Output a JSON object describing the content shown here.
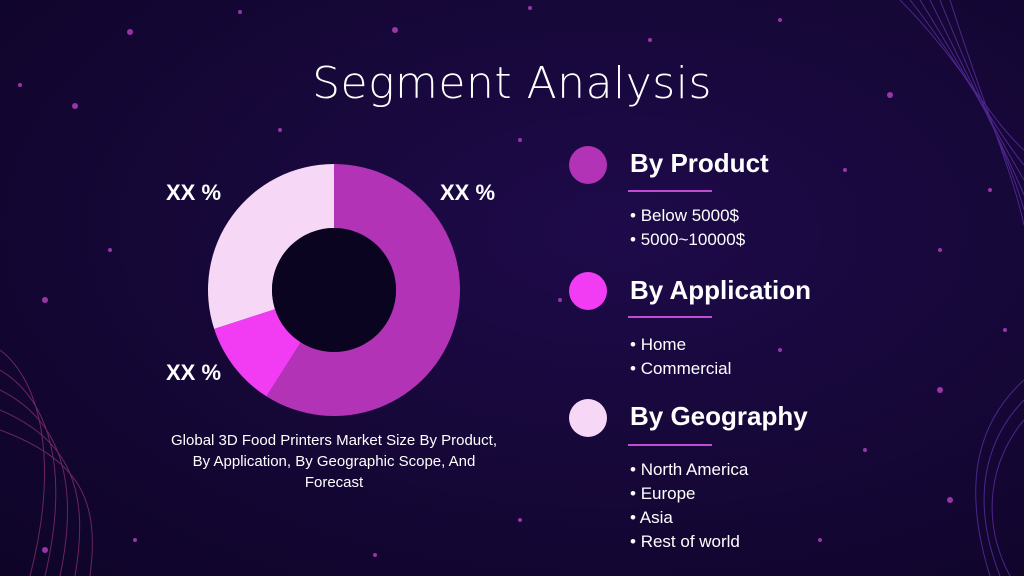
{
  "title": "Segment Analysis",
  "caption": "Global 3D Food Printers Market Size By Product, By Application, By Geographic Scope, And Forecast",
  "chart_data": {
    "type": "pie",
    "subtype": "donut",
    "slices": [
      {
        "label": "XX %",
        "value": 59,
        "color": "#b233b5"
      },
      {
        "label": "XX %",
        "value": 11,
        "color": "#f13cf4"
      },
      {
        "label": "XX %",
        "value": 30,
        "color": "#f7d7f6"
      }
    ]
  },
  "segments": [
    {
      "title": "By Product",
      "color": "#b233b5",
      "items": [
        "Below 5000$",
        "5000~10000$"
      ]
    },
    {
      "title": "By Application",
      "color": "#f13cf4",
      "items": [
        "Home",
        "Commercial"
      ]
    },
    {
      "title": "By Geography",
      "color": "#f7d7f6",
      "items": [
        "North America",
        "Europe",
        "Asia",
        "Rest of world"
      ]
    }
  ]
}
